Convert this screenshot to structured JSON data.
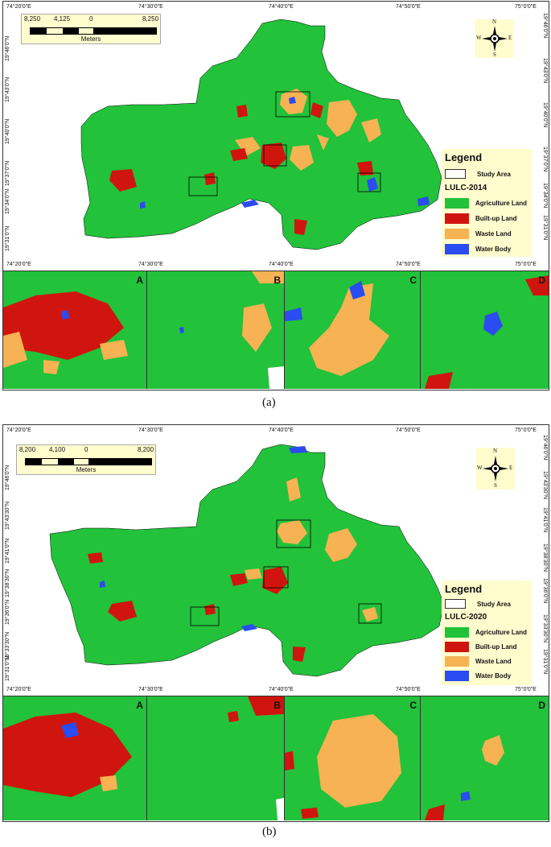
{
  "colors": {
    "agriculture": "#22c23a",
    "builtup": "#d0150e",
    "waste": "#f7b253",
    "water": "#2a4cf0",
    "legend_bg": "#fffccd"
  },
  "lon_labels": [
    "74°20'0\"E",
    "74°30'0\"E",
    "74°40'0\"E",
    "74°50'0\"E",
    "75°0'0\"E"
  ],
  "panel_a": {
    "scalebar": {
      "labels": [
        "8,250",
        "4,125",
        "0",
        "8,250"
      ],
      "unit": "Meters"
    },
    "lat_labels": [
      "19°46'0\"N",
      "19°43'0\"N",
      "19°40'0\"N",
      "19°37'0\"N",
      "19°34'0\"N",
      "19°31'0\"N"
    ],
    "compass": {
      "n": "N",
      "s": "S",
      "e": "E",
      "w": "W"
    },
    "legend": {
      "title": "Legend",
      "study_area": "Study Area",
      "year_title": "LULC-2014",
      "items": [
        "Agriculture Land",
        "Built-up Land",
        "Waste Land",
        "Water Body"
      ]
    },
    "insets": [
      "A",
      "B",
      "C",
      "D"
    ],
    "caption": "(a)"
  },
  "panel_b": {
    "scalebar": {
      "labels": [
        "8,200",
        "4,100",
        "0",
        "8,200"
      ],
      "unit": "Meters"
    },
    "lat_labels": [
      "19°46'0\"N",
      "19°43'30\"N",
      "19°41'0\"N",
      "19°38'30\"N",
      "19°36'0\"N",
      "19°33'30\"N",
      "19°31'0\"N"
    ],
    "compass": {
      "n": "N",
      "s": "S",
      "e": "E",
      "w": "W"
    },
    "legend": {
      "title": "Legend",
      "study_area": "Study Area",
      "year_title": "LULC-2020",
      "items": [
        "Agriculture Land",
        "Built-up Land",
        "Waste Land",
        "Water Body"
      ]
    },
    "insets": [
      "A",
      "B",
      "C",
      "D"
    ],
    "caption": "(b)"
  }
}
